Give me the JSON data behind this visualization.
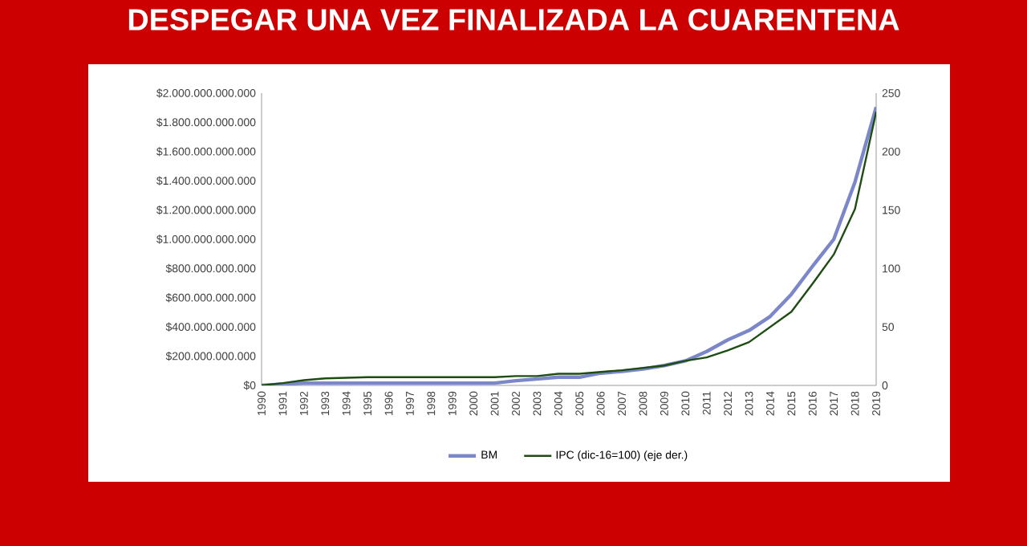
{
  "chart_data": {
    "type": "line",
    "title": "DESPEGAR UNA VEZ FINALIZADA LA CUARENTENA",
    "categories": [
      "1990",
      "1991",
      "1992",
      "1993",
      "1994",
      "1995",
      "1996",
      "1997",
      "1998",
      "1999",
      "2000",
      "2001",
      "2002",
      "2003",
      "2004",
      "2005",
      "2006",
      "2007",
      "2008",
      "2009",
      "2010",
      "2011",
      "2012",
      "2013",
      "2014",
      "2015",
      "2016",
      "2017",
      "2018",
      "2019"
    ],
    "series": [
      {
        "name": "BM",
        "color": "#7b87c9",
        "values": [
          0,
          8000000000,
          16000000000,
          16000000000,
          16000000000,
          16000000000,
          16000000000,
          16000000000,
          16000000000,
          16000000000,
          16000000000,
          16000000000,
          32000000000,
          44000000000,
          56000000000,
          56000000000,
          84000000000,
          96000000000,
          112000000000,
          136000000000,
          168000000000,
          232000000000,
          312000000000,
          376000000000,
          472000000000,
          624000000000,
          816000000000,
          1000000000000,
          1392000000000,
          1904000000000
        ]
      },
      {
        "name": "IPC (dic-16=100) (eje der.)",
        "color": "#1e4d12",
        "axis": "y2",
        "values": [
          0,
          2,
          4.5,
          6,
          6.5,
          7,
          7,
          7,
          7,
          7,
          7,
          7,
          8,
          8,
          10,
          10,
          11.5,
          13,
          15,
          17,
          21,
          24,
          30,
          37,
          50,
          63,
          87,
          112,
          151,
          234
        ]
      }
    ],
    "ylim": [
      0,
      2000000000000
    ],
    "yticks": [
      {
        "value": 0,
        "label": "$0"
      },
      {
        "value": 200000000000,
        "label": "$200.000.000.000"
      },
      {
        "value": 400000000000,
        "label": "$400.000.000.000"
      },
      {
        "value": 600000000000,
        "label": "$600.000.000.000"
      },
      {
        "value": 800000000000,
        "label": "$800.000.000.000"
      },
      {
        "value": 1000000000000,
        "label": "$1.000.000.000.000"
      },
      {
        "value": 1200000000000,
        "label": "$1.200.000.000.000"
      },
      {
        "value": 1400000000000,
        "label": "$1.400.000.000.000"
      },
      {
        "value": 1600000000000,
        "label": "$1.600.000.000.000"
      },
      {
        "value": 1800000000000,
        "label": "$1.800.000.000.000"
      },
      {
        "value": 2000000000000,
        "label": "$2.000.000.000.000"
      }
    ],
    "y2lim": [
      0,
      250
    ],
    "y2ticks": [
      0,
      50,
      100,
      150,
      200,
      250
    ],
    "grid": false,
    "legend": "bottom",
    "marker": "none",
    "line_style": "solid"
  }
}
